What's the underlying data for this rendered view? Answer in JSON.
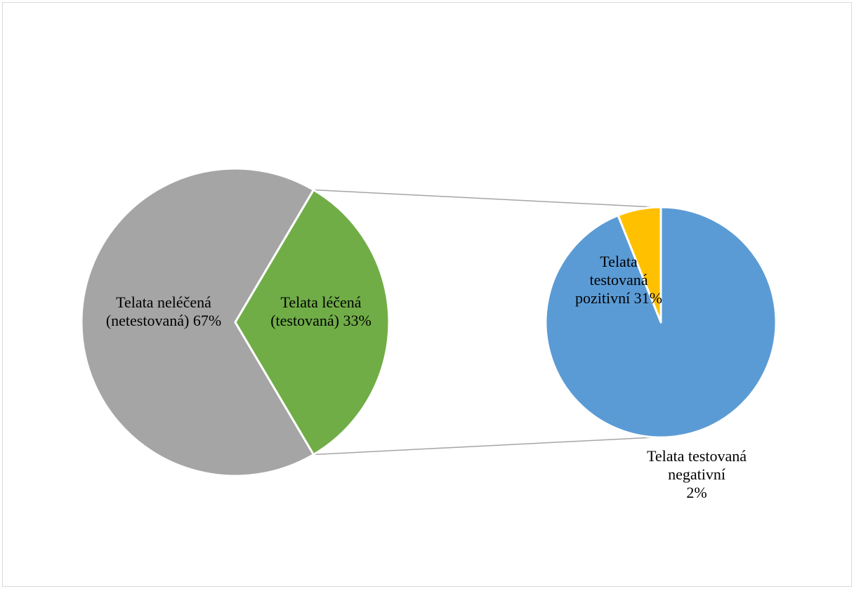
{
  "chart_data": {
    "type": "pie",
    "subtype": "pie-of-pie",
    "main_pie": {
      "slices": [
        {
          "id": "untreated",
          "label_lines": [
            "Telata neléčená",
            "(netestovaná) 67%"
          ],
          "value": 67,
          "color": "#a5a5a5"
        },
        {
          "id": "treated",
          "label_lines": [
            "Telata léčená",
            "(testovaná) 33%"
          ],
          "value": 33,
          "color": "#70ad47"
        }
      ]
    },
    "secondary_pie": {
      "slices": [
        {
          "id": "positive",
          "label_lines": [
            "Telata",
            "testovaná",
            "pozitivní 31%"
          ],
          "value": 31,
          "color": "#5b9bd5"
        },
        {
          "id": "negative",
          "label_lines": [
            "Telata testovaná",
            "negativní",
            "2%"
          ],
          "value": 2,
          "color": "#ffc000"
        }
      ]
    },
    "connector_color": "#a5a5a5",
    "legend": "none"
  }
}
